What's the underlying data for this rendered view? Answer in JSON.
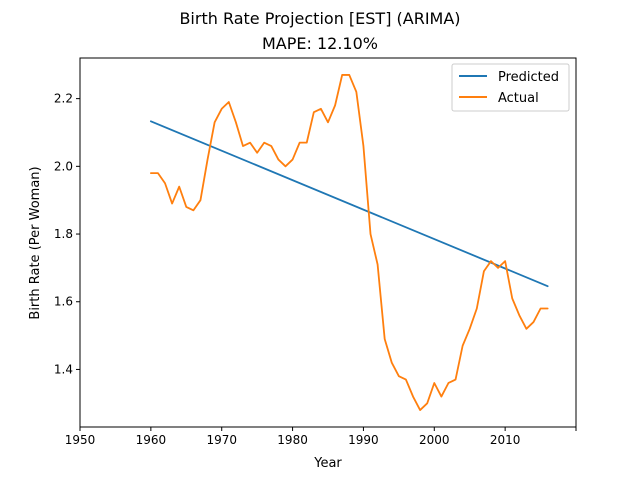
{
  "chart_data": {
    "type": "line",
    "title": "Birth Rate Projection [EST] (ARIMA)",
    "subtitle": "MAPE: 12.10%",
    "xlabel": "Year",
    "ylabel": "Birth Rate (Per Woman)",
    "xlim": [
      1950,
      2020
    ],
    "ylim": [
      1.23,
      2.32
    ],
    "xticks": [
      1950,
      1960,
      1970,
      1980,
      1990,
      2000,
      2010
    ],
    "yticks": [
      1.4,
      1.6,
      1.8,
      2.0,
      2.2
    ],
    "xtick_labels": [
      "1950",
      "1960",
      "1970",
      "1980",
      "1990",
      "2000",
      "2010"
    ],
    "ytick_labels": [
      "1.4",
      "1.6",
      "1.8",
      "2.0",
      "2.2"
    ],
    "grid": false,
    "legend_position": "top-right",
    "series": [
      {
        "name": "Predicted",
        "color": "#1f77b4",
        "x": [
          1960,
          2016
        ],
        "y": [
          2.133,
          1.646
        ]
      },
      {
        "name": "Actual",
        "color": "#ff7f0e",
        "x": [
          1960,
          1961,
          1962,
          1963,
          1964,
          1965,
          1966,
          1967,
          1968,
          1969,
          1970,
          1971,
          1972,
          1973,
          1974,
          1975,
          1976,
          1977,
          1978,
          1979,
          1980,
          1981,
          1982,
          1983,
          1984,
          1985,
          1986,
          1987,
          1988,
          1989,
          1990,
          1991,
          1992,
          1993,
          1994,
          1995,
          1996,
          1997,
          1998,
          1999,
          2000,
          2001,
          2002,
          2003,
          2004,
          2005,
          2006,
          2007,
          2008,
          2009,
          2010,
          2011,
          2012,
          2013,
          2014,
          2015,
          2016
        ],
        "y": [
          1.98,
          1.98,
          1.95,
          1.89,
          1.94,
          1.88,
          1.87,
          1.9,
          2.02,
          2.13,
          2.17,
          2.19,
          2.13,
          2.06,
          2.07,
          2.04,
          2.07,
          2.06,
          2.02,
          2.0,
          2.02,
          2.07,
          2.07,
          2.16,
          2.17,
          2.13,
          2.18,
          2.27,
          2.27,
          2.22,
          2.06,
          1.8,
          1.71,
          1.49,
          1.42,
          1.38,
          1.37,
          1.32,
          1.28,
          1.3,
          1.36,
          1.32,
          1.36,
          1.37,
          1.47,
          1.52,
          1.58,
          1.69,
          1.72,
          1.7,
          1.72,
          1.61,
          1.56,
          1.52,
          1.54,
          1.58,
          1.58
        ]
      }
    ]
  }
}
